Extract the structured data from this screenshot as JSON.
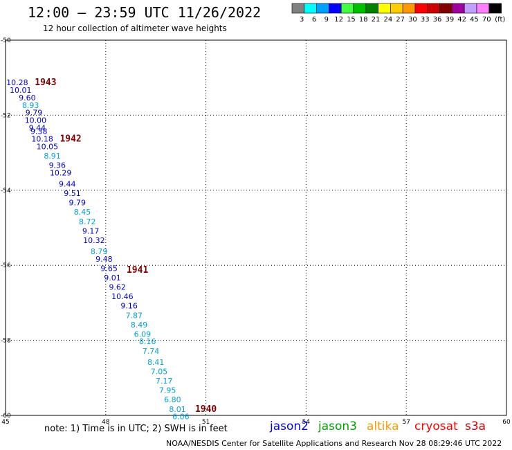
{
  "title": "12:00 – 23:59 UTC 11/26/2022",
  "subtitle": "12 hour collection of altimeter wave heights",
  "colorbar": {
    "unit": "(ft)",
    "bins": [
      {
        "label": "3",
        "color": "#808080"
      },
      {
        "label": "6",
        "color": "#00ffff"
      },
      {
        "label": "9",
        "color": "#00a0ff"
      },
      {
        "label": "12",
        "color": "#0000ff"
      },
      {
        "label": "15",
        "color": "#40ff40"
      },
      {
        "label": "18",
        "color": "#00c000"
      },
      {
        "label": "21",
        "color": "#008000"
      },
      {
        "label": "24",
        "color": "#ffff00"
      },
      {
        "label": "27",
        "color": "#ffcc00"
      },
      {
        "label": "30",
        "color": "#ff9900"
      },
      {
        "label": "33",
        "color": "#ff0000"
      },
      {
        "label": "36",
        "color": "#cc0000"
      },
      {
        "label": "39",
        "color": "#800000"
      },
      {
        "label": "42",
        "color": "#a000a0"
      },
      {
        "label": "45",
        "color": "#c0a0ff"
      },
      {
        "label": "70",
        "color": "#ff80ff"
      },
      {
        "label": "",
        "color": "#000000"
      }
    ]
  },
  "chart_data": {
    "type": "scatter",
    "xlim": [
      45,
      60
    ],
    "ylim": [
      -60,
      -50
    ],
    "x_ticks": [
      {
        "value": 45,
        "label": "45"
      },
      {
        "value": 48,
        "label": "48"
      },
      {
        "value": 51,
        "label": "51"
      },
      {
        "value": 54,
        "label": "54"
      },
      {
        "value": 57,
        "label": "57"
      },
      {
        "value": 60,
        "label": "60"
      }
    ],
    "y_ticks": [
      {
        "value": -50,
        "label": "-50"
      },
      {
        "value": -52,
        "label": "-52"
      },
      {
        "value": -54,
        "label": "-54"
      },
      {
        "value": -56,
        "label": "-56"
      },
      {
        "value": -58,
        "label": "-58"
      },
      {
        "value": -60,
        "label": "-60"
      }
    ],
    "grid": true,
    "series": [
      {
        "name": "jason2",
        "points": [
          {
            "x": 45.35,
            "y": -51.13,
            "label": "10.28",
            "color": "#0000cc"
          },
          {
            "x": 45.45,
            "y": -51.33,
            "label": "10.01",
            "color": "#0000cc"
          },
          {
            "x": 45.65,
            "y": -51.53,
            "label": "9.60",
            "color": "#0000cc"
          },
          {
            "x": 45.75,
            "y": -51.73,
            "label": "8.93",
            "color": "#00a0d8"
          },
          {
            "x": 45.85,
            "y": -51.93,
            "label": "9.79",
            "color": "#0000cc"
          },
          {
            "x": 45.9,
            "y": -52.13,
            "label": "10.00",
            "color": "#0000cc"
          },
          {
            "x": 45.95,
            "y": -52.33,
            "label": "9.44",
            "color": "#0000cc"
          },
          {
            "x": 46.0,
            "y": -52.43,
            "label": "9.38",
            "color": "#0000cc"
          },
          {
            "x": 46.1,
            "y": -52.63,
            "label": "10.18",
            "color": "#0000cc"
          },
          {
            "x": 46.25,
            "y": -52.83,
            "label": "10.05",
            "color": "#0000cc"
          },
          {
            "x": 46.4,
            "y": -53.08,
            "label": "8.91",
            "color": "#00a0d8"
          },
          {
            "x": 46.55,
            "y": -53.33,
            "label": "9.36",
            "color": "#0000cc"
          },
          {
            "x": 46.65,
            "y": -53.53,
            "label": "10.29",
            "color": "#0000cc"
          },
          {
            "x": 46.85,
            "y": -53.83,
            "label": "9.44",
            "color": "#0000cc"
          },
          {
            "x": 47.0,
            "y": -54.08,
            "label": "9.51",
            "color": "#0000cc"
          },
          {
            "x": 47.15,
            "y": -54.33,
            "label": "9.79",
            "color": "#0000cc"
          },
          {
            "x": 47.3,
            "y": -54.58,
            "label": "8.45",
            "color": "#00a0d8"
          },
          {
            "x": 47.45,
            "y": -54.83,
            "label": "8.72",
            "color": "#00a0d8"
          },
          {
            "x": 47.55,
            "y": -55.08,
            "label": "9.17",
            "color": "#0000cc"
          },
          {
            "x": 47.65,
            "y": -55.33,
            "label": "10.32",
            "color": "#0000cc"
          },
          {
            "x": 47.8,
            "y": -55.63,
            "label": "8.79",
            "color": "#00a0d8"
          },
          {
            "x": 47.95,
            "y": -55.83,
            "label": "9.48",
            "color": "#0000cc"
          },
          {
            "x": 48.1,
            "y": -56.08,
            "label": "9.65",
            "color": "#0000cc"
          },
          {
            "x": 48.2,
            "y": -56.33,
            "label": "9.01",
            "color": "#0000cc"
          },
          {
            "x": 48.35,
            "y": -56.58,
            "label": "9.62",
            "color": "#0000cc"
          },
          {
            "x": 48.5,
            "y": -56.83,
            "label": "10.46",
            "color": "#0000cc"
          },
          {
            "x": 48.7,
            "y": -57.08,
            "label": "9.16",
            "color": "#0000cc"
          },
          {
            "x": 48.85,
            "y": -57.33,
            "label": "7.87",
            "color": "#00a0d8"
          },
          {
            "x": 49.0,
            "y": -57.58,
            "label": "8.49",
            "color": "#00a0d8"
          },
          {
            "x": 49.1,
            "y": -57.83,
            "label": "6.09",
            "color": "#00a0d8"
          },
          {
            "x": 49.25,
            "y": -58.03,
            "label": "8.16",
            "color": "#00a0d8"
          },
          {
            "x": 49.35,
            "y": -58.28,
            "label": "7.74",
            "color": "#00a0d8"
          },
          {
            "x": 49.5,
            "y": -58.58,
            "label": "8.41",
            "color": "#00a0d8"
          },
          {
            "x": 49.6,
            "y": -58.83,
            "label": "7.05",
            "color": "#00a0d8"
          },
          {
            "x": 49.75,
            "y": -59.08,
            "label": "7.17",
            "color": "#00a0d8"
          },
          {
            "x": 49.85,
            "y": -59.33,
            "label": "7.95",
            "color": "#00a0d8"
          },
          {
            "x": 50.0,
            "y": -59.58,
            "label": "6.80",
            "color": "#00a0d8"
          },
          {
            "x": 50.15,
            "y": -59.83,
            "label": "8.01",
            "color": "#00a0d8"
          },
          {
            "x": 50.25,
            "y": -60.03,
            "label": "6.06",
            "color": "#00a0d8"
          }
        ]
      }
    ],
    "time_labels": [
      {
        "x": 46.2,
        "y": -51.13,
        "label": "1943"
      },
      {
        "x": 46.95,
        "y": -52.63,
        "label": "1942"
      },
      {
        "x": 48.95,
        "y": -56.13,
        "label": "1941"
      },
      {
        "x": 51.0,
        "y": -59.83,
        "label": "1940"
      }
    ]
  },
  "note": "note:  1) Time is in UTC;  2) SWH is in feet",
  "satellites": [
    {
      "name": "jason2",
      "color": "#0000ff"
    },
    {
      "name": "jason3",
      "color": "#00a000"
    },
    {
      "name": "altika",
      "color": "#ff9900"
    },
    {
      "name": "cryosat",
      "color": "#ff0000"
    },
    {
      "name": "s3a",
      "color": "#cc0000"
    }
  ],
  "credit": "NOAA/NESDIS Center for Satellite Applications and Research    Nov 28 08:29:46 UTC 2022"
}
